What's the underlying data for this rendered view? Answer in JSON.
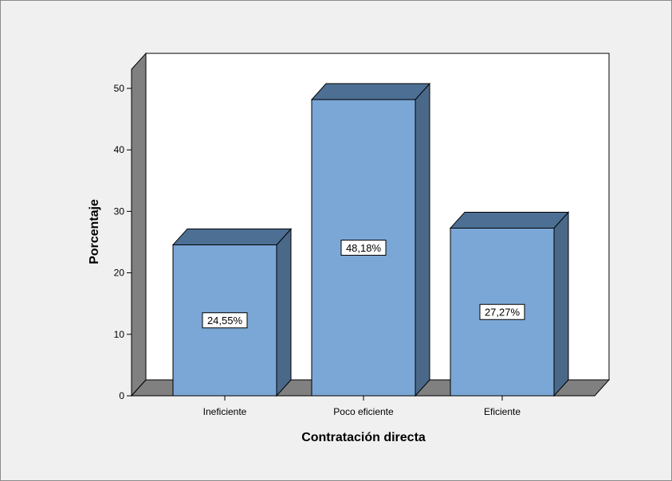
{
  "chart_data": {
    "type": "bar",
    "categories": [
      "Ineficiente",
      "Poco eficiente",
      "Eficiente"
    ],
    "values": [
      24.55,
      48.18,
      27.27
    ],
    "data_labels": [
      "24,55%",
      "48,18%",
      "27,27%"
    ],
    "xlabel": "Contratación directa",
    "ylabel": "Porcentaje",
    "ylim": [
      0,
      50
    ],
    "yticks": [
      0,
      10,
      20,
      30,
      40,
      50
    ],
    "grid": false,
    "three_d": true,
    "colors": {
      "bar_front": "#7ba7d6",
      "bar_side": "#4a6989",
      "bar_top": "#4d6f94",
      "walls": "#808080",
      "plot_bg": "#ffffff",
      "background": "#f0f0f0"
    }
  }
}
